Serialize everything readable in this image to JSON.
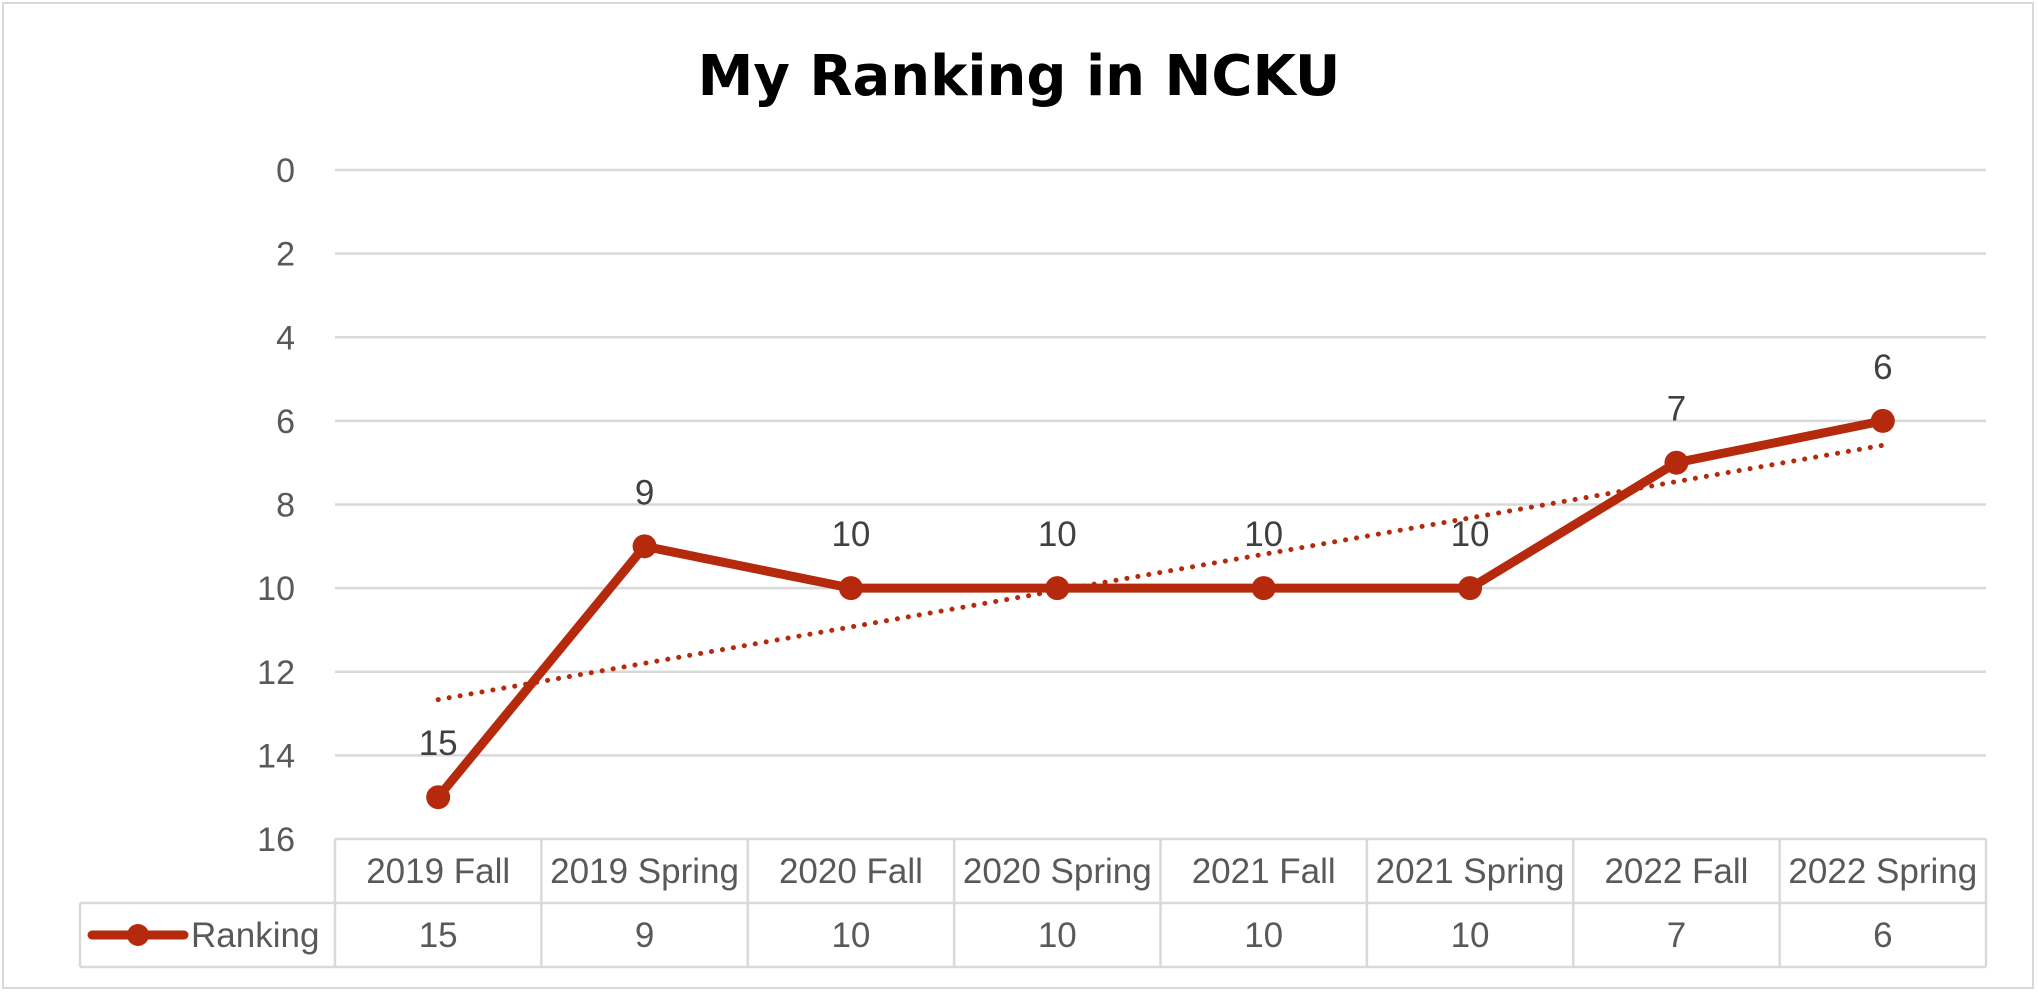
{
  "chart_data": {
    "type": "line",
    "title": "My Ranking in NCKU",
    "categories": [
      "2019 Fall",
      "2019 Spring",
      "2020 Fall",
      "2020 Spring",
      "2021 Fall",
      "2021 Spring",
      "2022 Fall",
      "2022 Spring"
    ],
    "series": [
      {
        "name": "Ranking",
        "values": [
          15,
          9,
          10,
          10,
          10,
          10,
          7,
          6
        ],
        "color": "#b52a0c"
      }
    ],
    "trendline": {
      "type": "linear",
      "style": "dotted",
      "color": "#b52a0c"
    },
    "ylim": [
      0,
      16
    ],
    "y_ticks": [
      0,
      2,
      4,
      6,
      8,
      10,
      12,
      14,
      16
    ],
    "y_axis_reversed": true,
    "data_labels": true,
    "grid": true,
    "data_table": true,
    "legend": "in data table"
  }
}
